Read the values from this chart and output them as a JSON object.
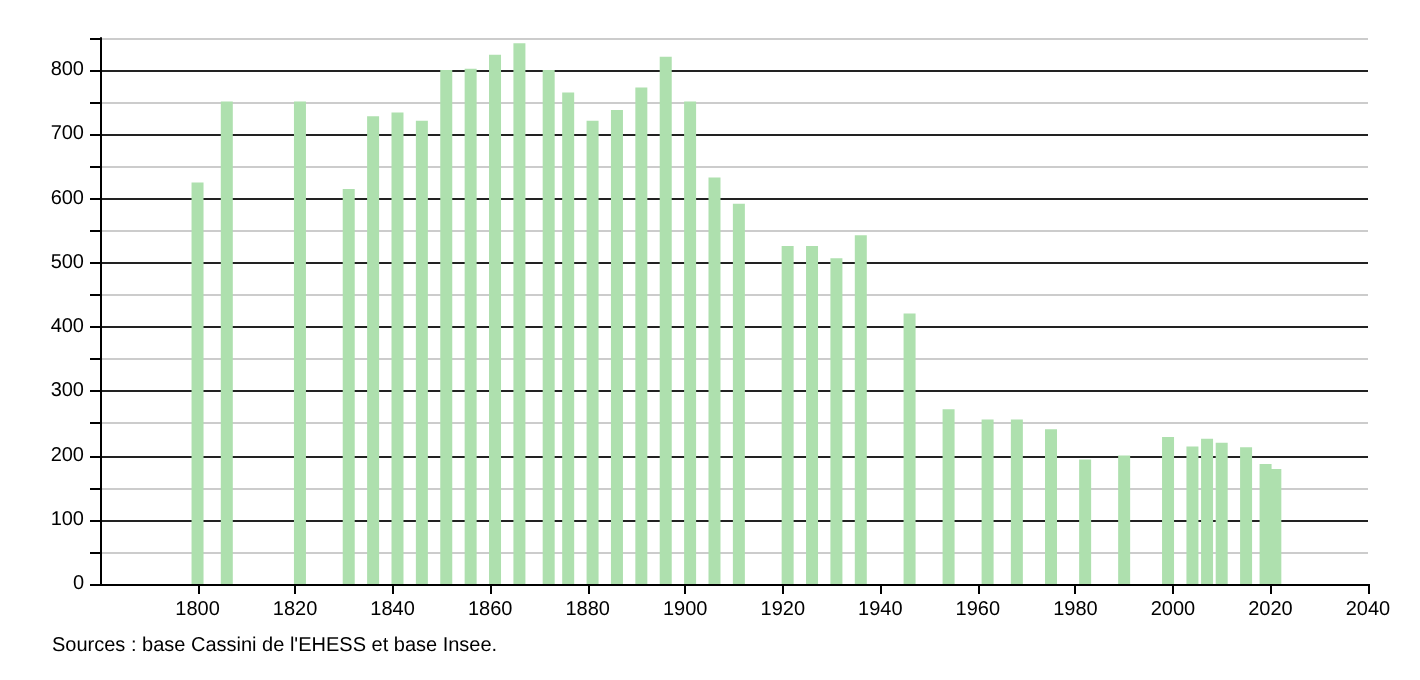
{
  "chart_data": {
    "type": "bar",
    "color": "#aee0ae",
    "x": [
      1800,
      1806,
      1821,
      1831,
      1836,
      1841,
      1846,
      1851,
      1856,
      1861,
      1866,
      1872,
      1876,
      1881,
      1886,
      1891,
      1896,
      1901,
      1906,
      1911,
      1921,
      1926,
      1931,
      1936,
      1946,
      1954,
      1962,
      1968,
      1975,
      1982,
      1990,
      1999,
      2004,
      2007,
      2010,
      2015,
      2019,
      2021
    ],
    "values": [
      625,
      751,
      751,
      615,
      728,
      734,
      721,
      800,
      802,
      824,
      842,
      800,
      765,
      721,
      738,
      773,
      821,
      751,
      633,
      592,
      526,
      526,
      507,
      543,
      421,
      272,
      256,
      256,
      241,
      194,
      200,
      229,
      214,
      226,
      220,
      213,
      187,
      179
    ],
    "xlim": [
      1780,
      2040
    ],
    "xticks": [
      1800,
      1820,
      1840,
      1860,
      1880,
      1900,
      1920,
      1940,
      1960,
      1980,
      2000,
      2020,
      2040
    ],
    "ylim": [
      0,
      850
    ],
    "yticks": [
      0,
      {
        "value": 50,
        "label": null
      },
      100,
      {
        "value": 150,
        "label": null
      },
      200,
      {
        "value": 250,
        "label": null
      },
      300,
      {
        "value": 350,
        "label": null
      },
      400,
      {
        "value": 450,
        "label": null
      },
      500,
      {
        "value": 550,
        "label": null
      },
      600,
      {
        "value": 650,
        "label": null
      },
      700,
      {
        "value": 750,
        "label": null
      },
      800,
      {
        "value": 850,
        "label": null
      }
    ],
    "grid": "y",
    "annotations": [
      "Sources : base Cassini de l'EHESS et base Insee."
    ]
  }
}
